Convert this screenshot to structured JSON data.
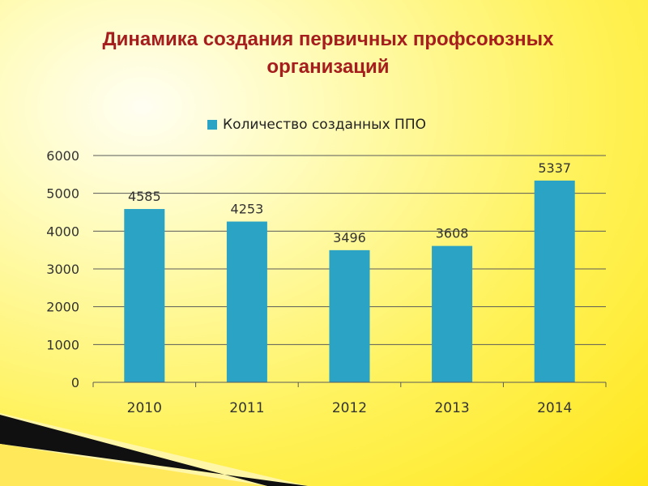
{
  "slide": {
    "title_line1": "Динамика создания первичных профсоюзных",
    "title_line2": "организаций",
    "title_color": "#a51d1d",
    "background_color": "#fff25a"
  },
  "chart_data": {
    "type": "bar",
    "title": "",
    "xlabel": "",
    "ylabel": "",
    "categories": [
      "2010",
      "2011",
      "2012",
      "2013",
      "2014"
    ],
    "series": [
      {
        "name": "Количество созданных ППО",
        "values": [
          4585,
          4253,
          3496,
          3608,
          5337
        ],
        "color": "#2aa3c4"
      }
    ],
    "ylim": [
      0,
      6000
    ],
    "yticks": [
      0,
      1000,
      2000,
      3000,
      4000,
      5000,
      6000
    ],
    "data_labels": [
      "4585",
      "4253",
      "3496",
      "3608",
      "5337"
    ],
    "grid": true,
    "legend_position": "top"
  }
}
